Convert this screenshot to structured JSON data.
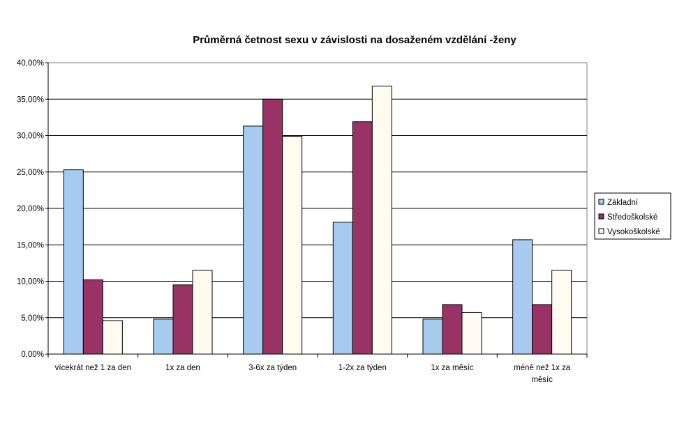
{
  "chart_data": {
    "type": "bar",
    "title": "Průměrná četnost sexu v závislosti na dosaženém vzdělání -ženy",
    "xlabel": "",
    "ylabel": "",
    "categories": [
      [
        "vícekrát než 1 za den"
      ],
      [
        "1x za den"
      ],
      [
        "3-6x za týden"
      ],
      [
        "1-2x za týden"
      ],
      [
        "1x za měsíc"
      ],
      [
        "méně než 1x za",
        "měsíc"
      ]
    ],
    "yticks": [
      "0,00%",
      "5,00%",
      "10,00%",
      "15,00%",
      "20,00%",
      "25,00%",
      "30,00%",
      "35,00%",
      "40,00%"
    ],
    "ylim": [
      0,
      40
    ],
    "grid": true,
    "legend_position": "right",
    "series": [
      {
        "name": "Základní",
        "color": "#a6caf0",
        "values": [
          25.3,
          4.8,
          31.3,
          18.1,
          4.8,
          15.7
        ]
      },
      {
        "name": "Středoškolské",
        "color": "#993366",
        "values": [
          10.2,
          9.5,
          35.0,
          31.9,
          6.8,
          6.8
        ]
      },
      {
        "name": "Vysokoškolské",
        "color": "#fffbf0",
        "values": [
          4.6,
          11.5,
          29.9,
          36.8,
          5.7,
          11.5
        ]
      }
    ]
  }
}
